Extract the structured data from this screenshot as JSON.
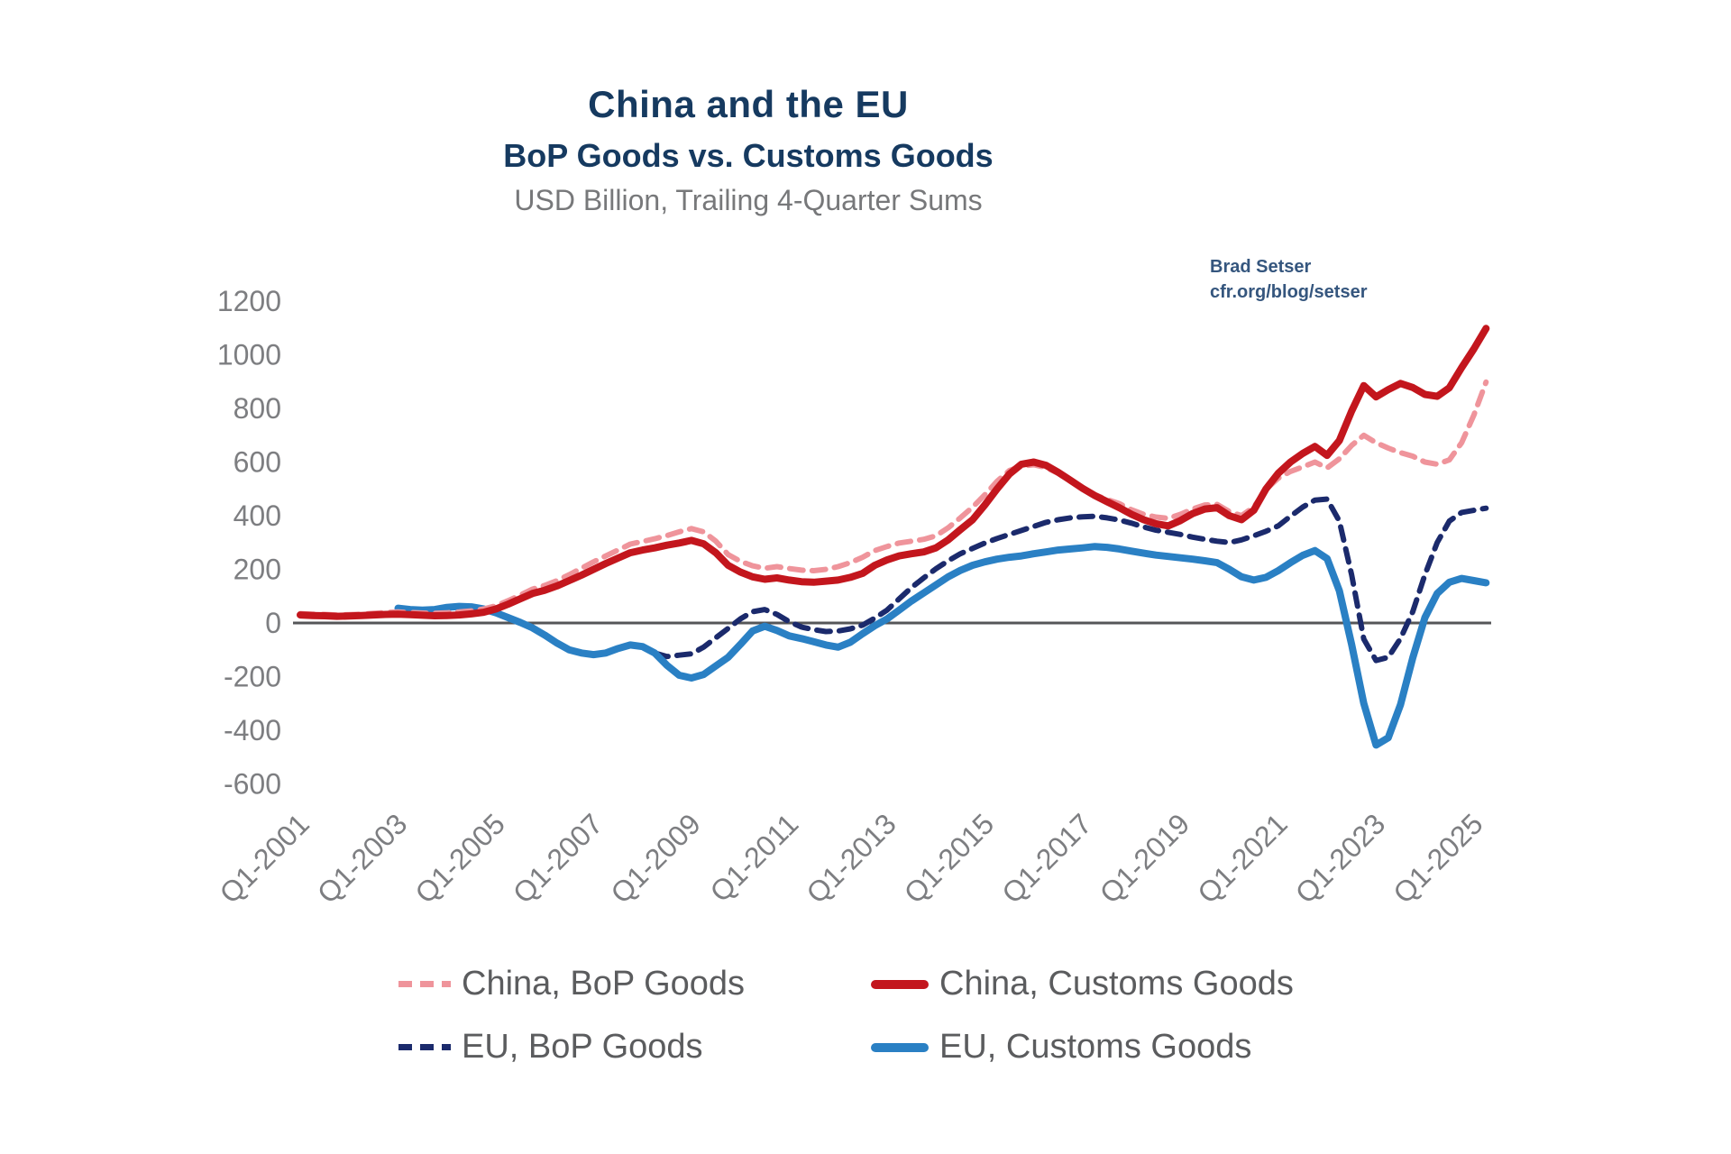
{
  "title": "China and the EU",
  "subtitle": "BoP Goods vs. Customs Goods",
  "units_note": "USD Billion, Trailing 4-Quarter Sums",
  "attribution": {
    "author": "Brad Setser",
    "source": "cfr.org/blog/setser"
  },
  "chart_data": {
    "type": "line",
    "title": "China and the EU",
    "subtitle": "BoP Goods vs. Customs Goods",
    "ylabel": "USD Billion, Trailing 4-Quarter Sums",
    "x_start": "Q1-2001",
    "x_end": "Q2-2025",
    "x_frequency": "quarterly",
    "x_tick_interval_quarters": 8,
    "x_tick_labels": [
      "Q1-2001",
      "Q1-2003",
      "Q1-2005",
      "Q1-2007",
      "Q1-2009",
      "Q1-2011",
      "Q1-2013",
      "Q1-2015",
      "Q1-2017",
      "Q1-2019",
      "Q1-2021",
      "Q1-2023",
      "Q1-2025"
    ],
    "y_ticks": [
      1200,
      1000,
      800,
      600,
      400,
      200,
      0,
      -200,
      -400,
      -600
    ],
    "ylim": [
      -600,
      1200
    ],
    "grid": false,
    "zero_line": true,
    "legend_position": "bottom",
    "series": [
      {
        "name": "China, BoP Goods",
        "color": "#ef949b",
        "style": "dashed",
        "values": [
          35,
          33,
          32,
          30,
          31,
          33,
          36,
          39,
          41,
          39,
          37,
          36,
          38,
          41,
          45,
          52,
          64,
          83,
          104,
          126,
          140,
          158,
          180,
          204,
          228,
          250,
          272,
          294,
          304,
          314,
          326,
          340,
          352,
          340,
          305,
          255,
          230,
          213,
          204,
          210,
          203,
          197,
          195,
          200,
          210,
          225,
          245,
          270,
          285,
          298,
          305,
          312,
          325,
          355,
          392,
          432,
          478,
          528,
          568,
          585,
          590,
          580,
          558,
          528,
          500,
          478,
          460,
          445,
          422,
          405,
          395,
          390,
          405,
          425,
          440,
          442,
          415,
          400,
          432,
          498,
          540,
          565,
          582,
          600,
          578,
          612,
          662,
          700,
          672,
          652,
          635,
          622,
          600,
          592,
          608,
          672,
          775,
          898
        ]
      },
      {
        "name": "China, Customs Goods",
        "color": "#c3161d",
        "style": "solid",
        "values": [
          30,
          28,
          27,
          25,
          26,
          28,
          30,
          32,
          33,
          31,
          29,
          27,
          28,
          30,
          34,
          40,
          52,
          70,
          90,
          110,
          122,
          138,
          158,
          178,
          200,
          222,
          242,
          262,
          272,
          280,
          290,
          298,
          308,
          295,
          262,
          215,
          190,
          172,
          163,
          168,
          160,
          154,
          152,
          156,
          160,
          170,
          185,
          215,
          235,
          250,
          258,
          265,
          280,
          310,
          348,
          385,
          440,
          500,
          555,
          592,
          600,
          588,
          562,
          532,
          502,
          475,
          452,
          430,
          405,
          385,
          370,
          362,
          382,
          408,
          425,
          430,
          400,
          385,
          420,
          500,
          558,
          600,
          632,
          658,
          625,
          680,
          790,
          885,
          843,
          870,
          893,
          878,
          852,
          845,
          877,
          952,
          1022,
          1098
        ]
      },
      {
        "name": "EU, BoP Goods",
        "color": "#1b2a6c",
        "style": "dashed",
        "values": [
          null,
          null,
          null,
          null,
          null,
          null,
          null,
          null,
          52,
          48,
          46,
          48,
          55,
          60,
          58,
          50,
          36,
          18,
          0,
          -20,
          -48,
          -78,
          -102,
          -114,
          -120,
          -114,
          -97,
          -84,
          -90,
          -112,
          -125,
          -120,
          -115,
          -90,
          -55,
          -20,
          15,
          42,
          50,
          32,
          5,
          -15,
          -25,
          -32,
          -30,
          -22,
          -8,
          18,
          48,
          90,
          132,
          168,
          202,
          232,
          258,
          278,
          298,
          315,
          330,
          345,
          360,
          375,
          385,
          392,
          396,
          398,
          392,
          384,
          372,
          358,
          346,
          338,
          330,
          320,
          312,
          305,
          300,
          310,
          325,
          342,
          362,
          398,
          432,
          458,
          462,
          380,
          180,
          -60,
          -140,
          -128,
          -58,
          42,
          180,
          300,
          380,
          412,
          420,
          428
        ]
      },
      {
        "name": "EU, Customs Goods",
        "color": "#2a80c4",
        "style": "solid",
        "values": [
          null,
          null,
          null,
          null,
          null,
          null,
          null,
          null,
          55,
          50,
          48,
          50,
          58,
          62,
          60,
          52,
          38,
          20,
          2,
          -18,
          -45,
          -75,
          -100,
          -112,
          -118,
          -112,
          -95,
          -82,
          -88,
          -112,
          -158,
          -195,
          -205,
          -192,
          -160,
          -128,
          -80,
          -30,
          -12,
          -28,
          -48,
          -58,
          -70,
          -82,
          -90,
          -72,
          -40,
          -10,
          15,
          48,
          82,
          112,
          142,
          172,
          196,
          215,
          228,
          238,
          245,
          250,
          258,
          265,
          272,
          276,
          280,
          285,
          282,
          276,
          268,
          260,
          253,
          248,
          243,
          238,
          232,
          225,
          200,
          172,
          160,
          170,
          195,
          225,
          252,
          270,
          240,
          120,
          -80,
          -300,
          -455,
          -428,
          -305,
          -130,
          20,
          110,
          152,
          166,
          158,
          150
        ]
      }
    ]
  }
}
